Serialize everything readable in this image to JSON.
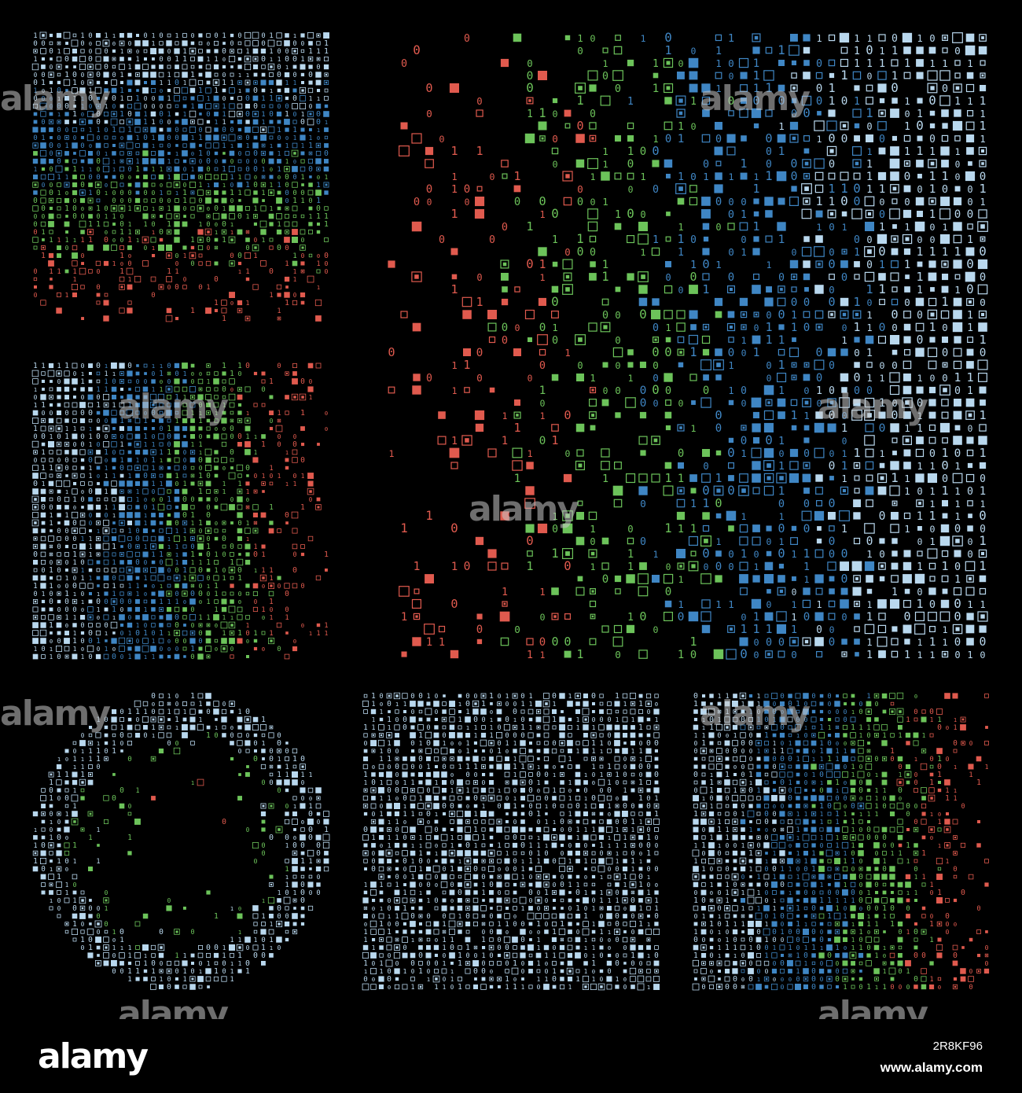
{
  "palette": {
    "background": "#000000",
    "light_blue": "#b9d8ee",
    "blue": "#3f86c4",
    "green": "#6cc35a",
    "red": "#e05a4e"
  },
  "glyphs": [
    "0",
    "1"
  ],
  "panels": [
    {
      "id": "panel-1",
      "shape": "square",
      "gradient": "top-to-bottom",
      "colors": [
        "light_blue",
        "blue",
        "green",
        "red"
      ]
    },
    {
      "id": "panel-2",
      "shape": "square",
      "gradient": "left-to-right",
      "colors": [
        "light_blue",
        "blue",
        "green",
        "red"
      ]
    },
    {
      "id": "panel-3",
      "shape": "wide-rectangle",
      "gradient": "right-to-left",
      "colors": [
        "light_blue",
        "blue",
        "green",
        "red"
      ]
    },
    {
      "id": "panel-4",
      "shape": "ring",
      "gradient": "outside-to-inside",
      "colors": [
        "light_blue",
        "green",
        "red"
      ]
    },
    {
      "id": "panel-5",
      "shape": "square",
      "gradient": "uniform",
      "colors": [
        "light_blue"
      ]
    },
    {
      "id": "panel-6",
      "shape": "square",
      "gradient": "left-to-right",
      "colors": [
        "light_blue",
        "blue",
        "green",
        "red"
      ]
    }
  ],
  "watermark": "alamy",
  "footer": {
    "logo": "alamy",
    "image_id": "2R8KF96",
    "site": "www.alamy.com"
  }
}
